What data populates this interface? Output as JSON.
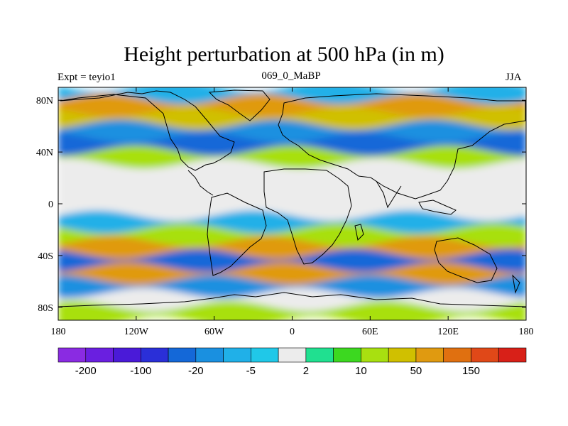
{
  "chart_data": {
    "type": "heatmap",
    "title": "Height perturbation at 500 hPa (in m)",
    "left_string": "Expt = teyio1",
    "center_string": "069_0_MaBP",
    "right_string": "JJA",
    "x_ticks": [
      "180",
      "120W",
      "60W",
      "0",
      "60E",
      "120E",
      "180"
    ],
    "x_tick_values": [
      -180,
      -120,
      -60,
      0,
      60,
      120,
      180
    ],
    "y_ticks": [
      "80N",
      "40N",
      "0",
      "40S",
      "80S"
    ],
    "y_tick_values": [
      80,
      40,
      0,
      -40,
      -80
    ],
    "xlim": [
      -180,
      180
    ],
    "ylim": [
      -90,
      90
    ],
    "colorbar": {
      "colors": [
        "#8a2be2",
        "#6a1fe0",
        "#4a1ad8",
        "#2a2fd8",
        "#1468d8",
        "#1a90e0",
        "#20b0e8",
        "#20c8e8",
        "#ececec",
        "#20e090",
        "#3cd820",
        "#a8e010",
        "#d0c000",
        "#e09a10",
        "#e07010",
        "#e04818",
        "#d82018"
      ],
      "labels": [
        "-200",
        "-100",
        "-20",
        "-5",
        "2",
        "10",
        "50",
        "150"
      ]
    },
    "field_bands": [
      {
        "lat": 85,
        "value": -20
      },
      {
        "lat": 75,
        "value": 50
      },
      {
        "lat": 65,
        "value": 20
      },
      {
        "lat": 55,
        "value": -50
      },
      {
        "lat": 45,
        "value": -100
      },
      {
        "lat": 35,
        "value": 10
      },
      {
        "lat": 25,
        "value": 0
      },
      {
        "lat": 15,
        "value": -5
      },
      {
        "lat": 5,
        "value": -5
      },
      {
        "lat": -5,
        "value": 0
      },
      {
        "lat": -15,
        "value": -20
      },
      {
        "lat": -25,
        "value": 10
      },
      {
        "lat": -35,
        "value": 50
      },
      {
        "lat": -45,
        "value": -100
      },
      {
        "lat": -55,
        "value": 50
      },
      {
        "lat": -65,
        "value": -50
      },
      {
        "lat": -75,
        "value": 0
      },
      {
        "lat": -85,
        "value": 10
      }
    ]
  }
}
